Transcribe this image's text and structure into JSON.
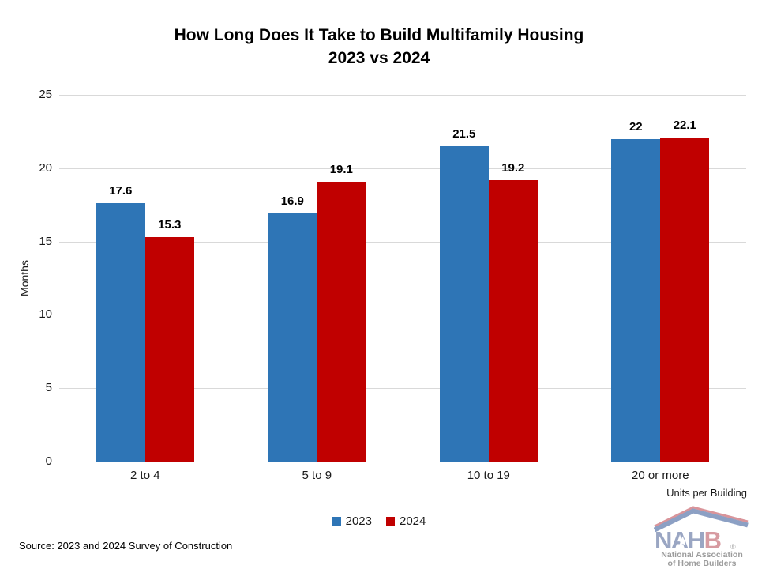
{
  "title": {
    "line1": "How Long Does It Take to Build Multifamily Housing",
    "line2": "2023 vs 2024"
  },
  "chart_data": {
    "type": "bar",
    "title": "How Long Does It Take to Build Multifamily Housing 2023 vs 2024",
    "categories": [
      "2 to 4",
      "5 to 9",
      "10 to 19",
      "20 or more"
    ],
    "series": [
      {
        "name": "2023",
        "color": "#2E75B6",
        "values": [
          17.6,
          16.9,
          21.5,
          22
        ]
      },
      {
        "name": "2024",
        "color": "#C00000",
        "values": [
          15.3,
          19.1,
          19.2,
          22.1
        ]
      }
    ],
    "ylabel": "Months",
    "xlabel": "Units per Building",
    "ylim": [
      0,
      25
    ],
    "yticks": [
      0,
      5,
      10,
      15,
      20,
      25
    ],
    "grid": true,
    "grid_color": "#D9D9D9",
    "legend_position": "bottom",
    "value_labels": true
  },
  "footer": {
    "source": "Source: 2023 and 2024 Survey of Construction"
  },
  "logo": {
    "nah": "NAH",
    "b": "B",
    "registered": "®",
    "line1": "National Association",
    "line2": "of Home Builders"
  }
}
